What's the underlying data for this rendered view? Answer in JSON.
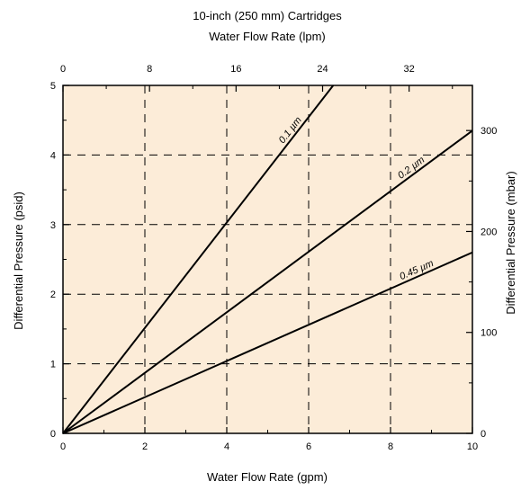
{
  "chart_data": {
    "type": "line",
    "title": "10-inch (250 mm) Cartridges",
    "top_axis_label": "Water Flow Rate (lpm)",
    "xlabel": "Water Flow Rate (gpm)",
    "ylabel": "Differential Pressure (psid)",
    "right_axis_label": "Differential Pressure (mbar)",
    "xlim": [
      0,
      10
    ],
    "ylim": [
      0,
      5
    ],
    "top_lim": [
      0,
      37.85
    ],
    "right_lim": [
      0,
      344.7
    ],
    "x_ticks": [
      "0",
      "2",
      "4",
      "6",
      "8",
      "10"
    ],
    "y_ticks": [
      "0",
      "1",
      "2",
      "3",
      "4",
      "5"
    ],
    "top_ticks": [
      "0",
      "8",
      "16",
      "24",
      "32"
    ],
    "right_ticks": [
      "0",
      "100",
      "200",
      "300"
    ],
    "grid": true,
    "background_color": "#fcecd8",
    "series": [
      {
        "name": "0.1 µm",
        "x": [
          0,
          6.6
        ],
        "y": [
          0,
          5.0
        ]
      },
      {
        "name": "0.2 µm",
        "x": [
          0,
          10
        ],
        "y": [
          0,
          4.35
        ]
      },
      {
        "name": "0.45 µm",
        "x": [
          0,
          10
        ],
        "y": [
          0,
          2.6
        ]
      }
    ]
  }
}
